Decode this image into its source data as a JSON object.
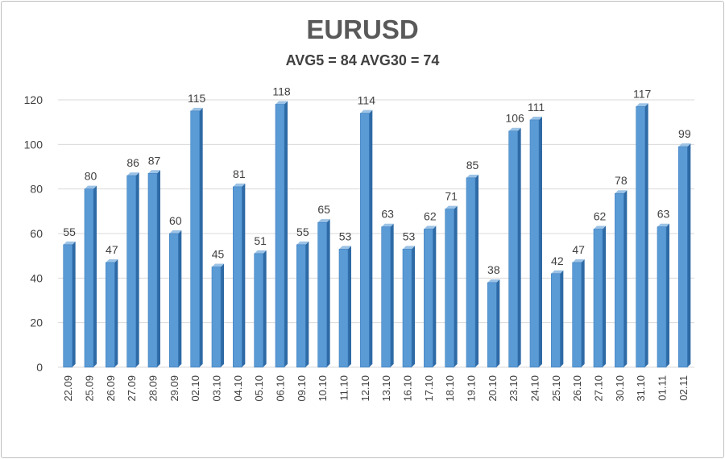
{
  "chart_data": {
    "type": "bar",
    "title": "EURUSD",
    "subtitle": "AVG5 = 84 AVG30 = 74",
    "categories": [
      "22.09",
      "25.09",
      "26.09",
      "27.09",
      "28.09",
      "29.09",
      "02.10",
      "03.10",
      "04.10",
      "05.10",
      "06.10",
      "09.10",
      "10.10",
      "11.10",
      "12.10",
      "13.10",
      "16.10",
      "17.10",
      "18.10",
      "19.10",
      "20.10",
      "23.10",
      "24.10",
      "25.10",
      "26.10",
      "27.10",
      "30.10",
      "31.10",
      "01.11",
      "02.11"
    ],
    "values": [
      55,
      80,
      47,
      86,
      87,
      60,
      115,
      45,
      81,
      51,
      118,
      55,
      65,
      53,
      114,
      63,
      53,
      62,
      71,
      85,
      38,
      106,
      111,
      42,
      47,
      62,
      78,
      117,
      63,
      99
    ],
    "ylim": [
      0,
      120
    ],
    "yticks": [
      0,
      20,
      40,
      60,
      80,
      100,
      120
    ],
    "xlabel": "",
    "ylabel": "",
    "grid": true,
    "colors": {
      "bar_front": "#5b9bd5",
      "bar_side": "#2e6aa5",
      "bar_top": "#9cc3e6",
      "grid": "#d9d9d9",
      "label": "#404040"
    }
  }
}
